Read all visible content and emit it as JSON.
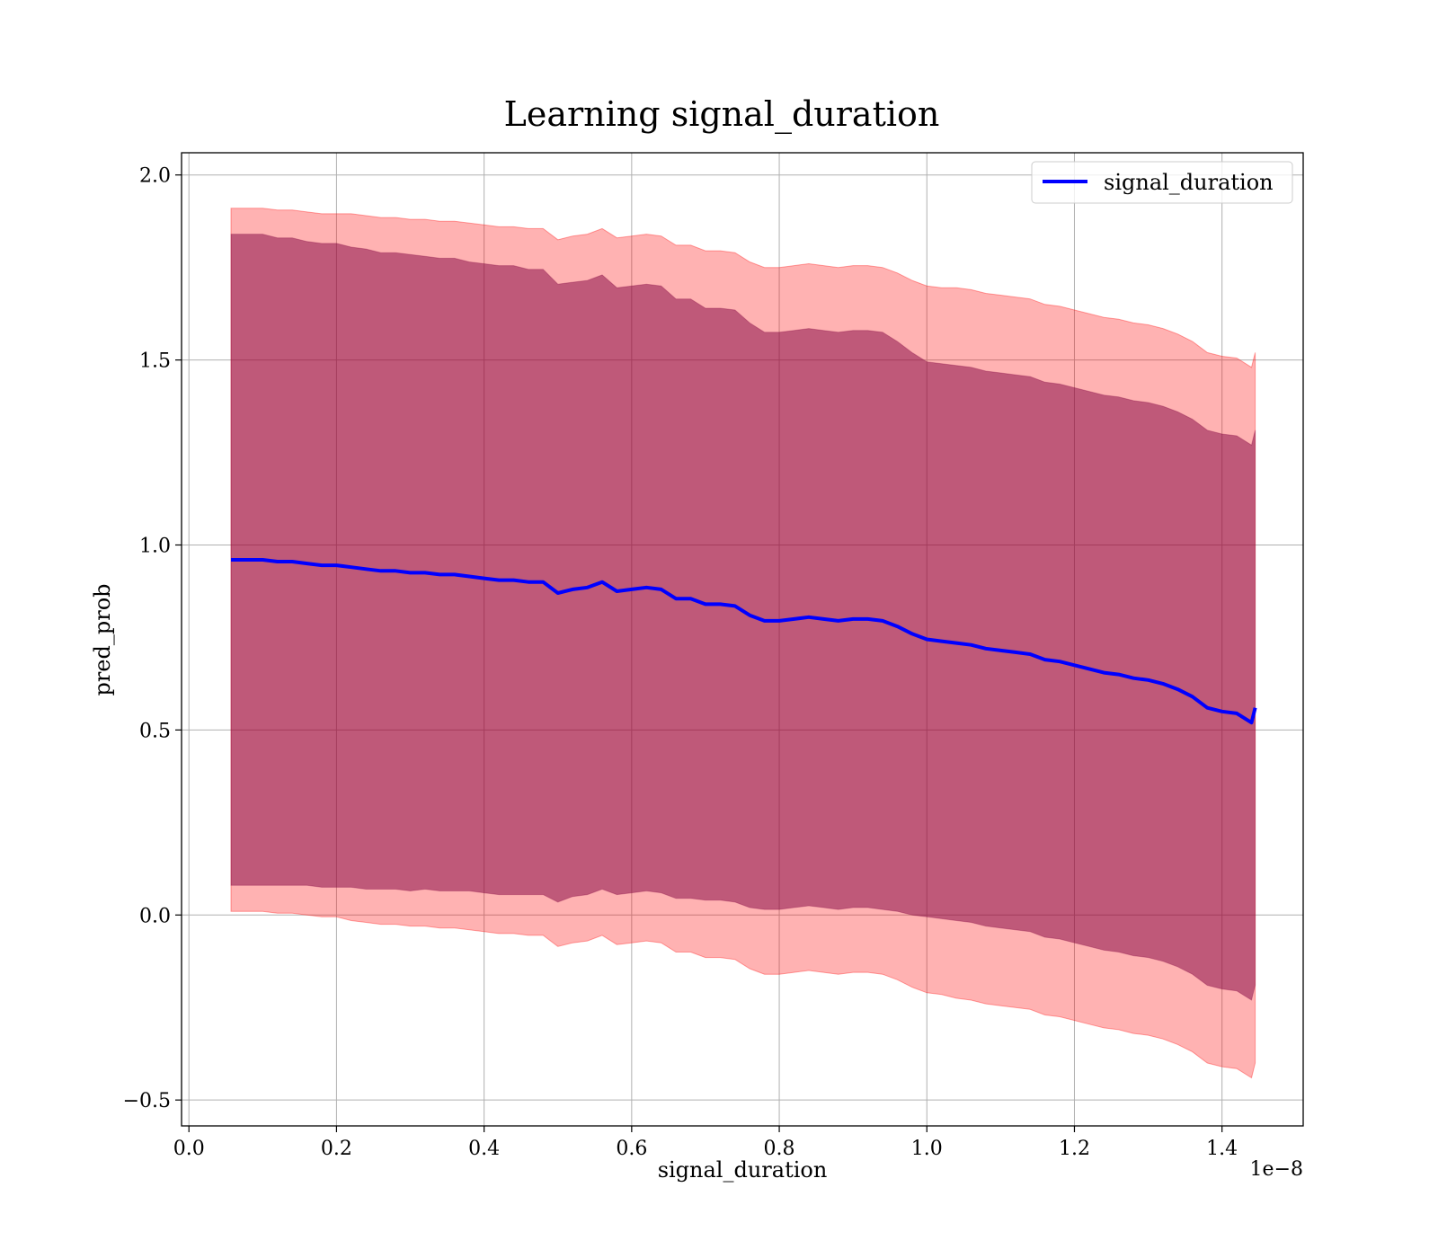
{
  "chart_data": {
    "type": "line",
    "title": "Learning signal_duration",
    "xlabel": "signal_duration",
    "ylabel": "pred_prob",
    "x_offset_label": "1e−8",
    "xlim": [
      -0.01,
      1.51
    ],
    "ylim": [
      -0.57,
      2.06
    ],
    "x_ticks": [
      0.0,
      0.2,
      0.4,
      0.6,
      0.8,
      1.0,
      1.2,
      1.4
    ],
    "x_tick_labels": [
      "0.0",
      "0.2",
      "0.4",
      "0.6",
      "0.8",
      "1.0",
      "1.2",
      "1.4"
    ],
    "y_ticks": [
      -0.5,
      0.0,
      0.5,
      1.0,
      1.5,
      2.0
    ],
    "y_tick_labels": [
      "−0.5",
      "0.0",
      "0.5",
      "1.0",
      "1.5",
      "2.0"
    ],
    "grid": true,
    "legend_placement": "top-right",
    "colors": {
      "line": "#0000ff",
      "outer_band": "#ff0000",
      "outer_band_opacity": 0.3,
      "inner_band": "#800040",
      "inner_band_opacity": 0.5,
      "grid": "#b0b0b0"
    },
    "series": [
      {
        "name": "signal_duration",
        "x": [
          0.057,
          0.08,
          0.1,
          0.12,
          0.14,
          0.16,
          0.18,
          0.2,
          0.22,
          0.24,
          0.26,
          0.28,
          0.3,
          0.32,
          0.34,
          0.36,
          0.38,
          0.4,
          0.42,
          0.44,
          0.46,
          0.48,
          0.5,
          0.52,
          0.54,
          0.56,
          0.58,
          0.6,
          0.62,
          0.64,
          0.66,
          0.68,
          0.7,
          0.72,
          0.74,
          0.76,
          0.78,
          0.8,
          0.82,
          0.84,
          0.86,
          0.88,
          0.9,
          0.92,
          0.94,
          0.96,
          0.98,
          1.0,
          1.02,
          1.04,
          1.06,
          1.08,
          1.1,
          1.12,
          1.14,
          1.16,
          1.18,
          1.2,
          1.22,
          1.24,
          1.26,
          1.28,
          1.3,
          1.32,
          1.34,
          1.36,
          1.38,
          1.4,
          1.42,
          1.44,
          1.445
        ],
        "y": [
          0.96,
          0.96,
          0.96,
          0.955,
          0.955,
          0.95,
          0.945,
          0.945,
          0.94,
          0.935,
          0.93,
          0.93,
          0.925,
          0.925,
          0.92,
          0.92,
          0.915,
          0.91,
          0.905,
          0.905,
          0.9,
          0.9,
          0.87,
          0.88,
          0.885,
          0.9,
          0.875,
          0.88,
          0.885,
          0.88,
          0.855,
          0.855,
          0.84,
          0.84,
          0.835,
          0.81,
          0.795,
          0.795,
          0.8,
          0.805,
          0.8,
          0.795,
          0.8,
          0.8,
          0.795,
          0.78,
          0.76,
          0.745,
          0.74,
          0.735,
          0.73,
          0.72,
          0.715,
          0.71,
          0.705,
          0.69,
          0.685,
          0.675,
          0.665,
          0.655,
          0.65,
          0.64,
          0.635,
          0.625,
          0.61,
          0.59,
          0.56,
          0.55,
          0.545,
          0.52,
          0.56
        ],
        "band_half_width_outer": [
          0.95,
          0.95,
          0.95,
          0.95,
          0.95,
          0.95,
          0.95,
          0.95,
          0.955,
          0.955,
          0.955,
          0.955,
          0.955,
          0.955,
          0.955,
          0.955,
          0.955,
          0.955,
          0.955,
          0.955,
          0.955,
          0.955,
          0.955,
          0.955,
          0.955,
          0.955,
          0.955,
          0.955,
          0.955,
          0.955,
          0.955,
          0.955,
          0.955,
          0.955,
          0.955,
          0.955,
          0.955,
          0.955,
          0.955,
          0.955,
          0.955,
          0.955,
          0.955,
          0.955,
          0.955,
          0.955,
          0.955,
          0.955,
          0.955,
          0.96,
          0.96,
          0.96,
          0.96,
          0.96,
          0.96,
          0.96,
          0.96,
          0.96,
          0.96,
          0.96,
          0.96,
          0.96,
          0.96,
          0.96,
          0.96,
          0.96,
          0.96,
          0.96,
          0.96,
          0.96,
          0.96
        ],
        "band_half_width_inner": [
          0.88,
          0.88,
          0.88,
          0.875,
          0.875,
          0.87,
          0.87,
          0.87,
          0.865,
          0.865,
          0.86,
          0.86,
          0.86,
          0.855,
          0.855,
          0.855,
          0.85,
          0.85,
          0.85,
          0.85,
          0.845,
          0.845,
          0.835,
          0.83,
          0.83,
          0.83,
          0.82,
          0.82,
          0.82,
          0.82,
          0.81,
          0.81,
          0.8,
          0.8,
          0.8,
          0.79,
          0.78,
          0.78,
          0.78,
          0.78,
          0.78,
          0.78,
          0.78,
          0.78,
          0.78,
          0.77,
          0.76,
          0.75,
          0.75,
          0.75,
          0.75,
          0.75,
          0.75,
          0.75,
          0.75,
          0.75,
          0.75,
          0.75,
          0.75,
          0.75,
          0.75,
          0.75,
          0.75,
          0.75,
          0.75,
          0.75,
          0.75,
          0.75,
          0.75,
          0.75,
          0.75
        ]
      }
    ]
  }
}
